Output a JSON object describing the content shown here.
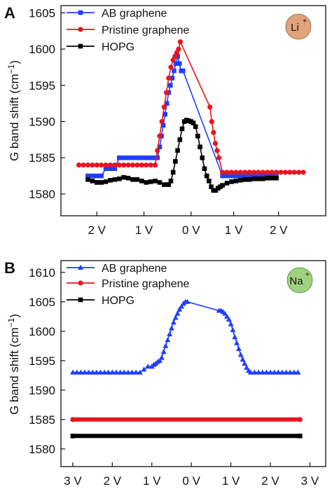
{
  "colors": {
    "ab": "#1f3fff",
    "pristine": "#e8141e",
    "hopg": "#000000",
    "li_badge": "#e2a27c",
    "na_badge": "#9fd27e"
  },
  "chart_data": [
    {
      "panel": "A",
      "type": "line",
      "ylabel": "G band shift (cm",
      "ylabel_sup": "−1",
      "ylabel_close": ")",
      "ylim": [
        1577,
        1606
      ],
      "yticks": [
        1580,
        1585,
        1590,
        1595,
        1600,
        1605
      ],
      "xlim": [
        -2.9,
        3.0
      ],
      "xticks": [
        -2.1,
        -1.05,
        0,
        0.95,
        1.95
      ],
      "xtick_labels": [
        "2 V",
        "1 V",
        "0 V",
        "1 V",
        "2 V"
      ],
      "badge": {
        "symbol": "Li",
        "charge": "+"
      },
      "legend_position": "top-left",
      "series": [
        {
          "name": "AB graphene",
          "marker": "square",
          "x": [
            -2.3,
            -2.2,
            -2.1,
            -2.0,
            -1.9,
            -1.8,
            -1.7,
            -1.6,
            -1.5,
            -1.4,
            -1.3,
            -1.2,
            -1.1,
            -1.0,
            -0.9,
            -0.8,
            -0.75,
            -0.7,
            -0.66,
            -0.62,
            -0.58,
            -0.54,
            -0.5,
            -0.46,
            -0.42,
            -0.38,
            -0.34,
            -0.3,
            -0.26,
            -0.22,
            -0.18,
            0.7,
            0.8,
            0.9,
            1.0,
            1.1,
            1.2,
            1.3,
            1.4,
            1.5,
            1.6,
            1.7,
            1.8,
            1.9
          ],
          "y": [
            1582.5,
            1582.5,
            1582.5,
            1582.5,
            1583.5,
            1583.5,
            1583.5,
            1585.0,
            1585.0,
            1585.0,
            1585.0,
            1585.0,
            1585.0,
            1585.0,
            1585.0,
            1585.0,
            1585.0,
            1586.5,
            1588.0,
            1589.5,
            1591.0,
            1592.5,
            1594.0,
            1595.0,
            1596.0,
            1597.0,
            1598.0,
            1599.0,
            1598.0,
            1597.0,
            1597.0,
            1582.5,
            1582.5,
            1582.5,
            1582.5,
            1582.5,
            1582.5,
            1582.5,
            1582.5,
            1582.5,
            1582.5,
            1582.5,
            1582.5,
            1582.5
          ]
        },
        {
          "name": "Pristine graphene",
          "marker": "circle",
          "x": [
            -2.5,
            -2.4,
            -2.3,
            -2.2,
            -2.1,
            -2.0,
            -1.9,
            -1.8,
            -1.7,
            -1.6,
            -1.5,
            -1.4,
            -1.3,
            -1.2,
            -1.1,
            -1.0,
            -0.9,
            -0.8,
            -0.75,
            -0.7,
            -0.65,
            -0.6,
            -0.55,
            -0.5,
            -0.45,
            -0.4,
            -0.36,
            -0.32,
            -0.28,
            -0.24,
            0.42,
            0.46,
            0.5,
            0.54,
            0.58,
            0.62,
            0.7,
            0.8,
            0.9,
            1.0,
            1.1,
            1.2,
            1.3,
            1.4,
            1.5,
            1.6,
            1.7,
            1.8,
            1.9,
            2.0,
            2.1,
            2.2,
            2.3,
            2.4,
            2.5
          ],
          "y": [
            1584.0,
            1584.0,
            1584.0,
            1584.0,
            1584.0,
            1584.0,
            1584.0,
            1584.0,
            1584.0,
            1584.0,
            1584.0,
            1584.0,
            1584.0,
            1584.0,
            1584.0,
            1584.0,
            1584.0,
            1584.0,
            1586.0,
            1588.0,
            1590.0,
            1592.0,
            1594.0,
            1596.0,
            1597.5,
            1598.5,
            1599.0,
            1599.5,
            1600.0,
            1601.0,
            1592.0,
            1590.0,
            1588.5,
            1587.0,
            1586.0,
            1585.0,
            1583.0,
            1583.0,
            1583.0,
            1583.0,
            1583.0,
            1583.0,
            1583.0,
            1583.0,
            1583.0,
            1583.0,
            1583.0,
            1583.0,
            1583.0,
            1583.0,
            1583.0,
            1583.0,
            1583.0,
            1583.0,
            1583.0
          ]
        },
        {
          "name": "HOPG",
          "marker": "square",
          "x": [
            -2.3,
            -2.2,
            -2.1,
            -2.0,
            -1.9,
            -1.8,
            -1.7,
            -1.6,
            -1.5,
            -1.4,
            -1.3,
            -1.2,
            -1.1,
            -1.0,
            -0.9,
            -0.8,
            -0.7,
            -0.6,
            -0.5,
            -0.45,
            -0.4,
            -0.35,
            -0.3,
            -0.25,
            -0.2,
            -0.15,
            -0.1,
            -0.05,
            0.0,
            0.05,
            0.1,
            0.15,
            0.2,
            0.25,
            0.3,
            0.35,
            0.4,
            0.45,
            0.5,
            0.55,
            0.6,
            0.65,
            0.7,
            0.8,
            0.9,
            1.0,
            1.1,
            1.2,
            1.3,
            1.4,
            1.5,
            1.6,
            1.7,
            1.8,
            1.9
          ],
          "y": [
            1582.0,
            1581.8,
            1581.6,
            1581.6,
            1581.7,
            1581.9,
            1582.0,
            1582.1,
            1582.3,
            1582.2,
            1582.0,
            1582.0,
            1581.8,
            1581.6,
            1581.7,
            1581.8,
            1581.6,
            1581.3,
            1581.3,
            1581.8,
            1583.0,
            1584.5,
            1586.0,
            1587.5,
            1589.0,
            1590.0,
            1590.2,
            1590.1,
            1590.0,
            1589.8,
            1589.3,
            1588.0,
            1586.5,
            1585.0,
            1583.5,
            1582.5,
            1581.8,
            1581.0,
            1580.5,
            1580.5,
            1580.8,
            1581.0,
            1581.2,
            1581.5,
            1581.7,
            1581.8,
            1581.9,
            1582.0,
            1582.0,
            1582.1,
            1582.1,
            1582.1,
            1582.2,
            1582.2,
            1582.2
          ]
        }
      ]
    },
    {
      "panel": "B",
      "type": "line",
      "ylabel": "G band shift (cm",
      "ylabel_sup": "−1",
      "ylabel_close": ")",
      "ylim": [
        1577,
        1612
      ],
      "yticks": [
        1580,
        1585,
        1590,
        1595,
        1600,
        1605,
        1610
      ],
      "xlim": [
        -3.3,
        3.4
      ],
      "xticks": [
        -3.0,
        -2.0,
        -1.0,
        0,
        1.0,
        2.0,
        3.0
      ],
      "xtick_labels": [
        "3 V",
        "2 V",
        "1 V",
        "0 V",
        "1 V",
        "2 V",
        "3 V"
      ],
      "badge": {
        "symbol": "Na",
        "charge": "+"
      },
      "legend_position": "top-left",
      "series": [
        {
          "name": "AB graphene",
          "marker": "triangle",
          "x": [
            -3.0,
            -2.9,
            -2.8,
            -2.7,
            -2.6,
            -2.5,
            -2.4,
            -2.3,
            -2.2,
            -2.1,
            -2.0,
            -1.9,
            -1.8,
            -1.7,
            -1.6,
            -1.5,
            -1.4,
            -1.3,
            -1.2,
            -1.1,
            -1.0,
            -0.95,
            -0.9,
            -0.85,
            -0.8,
            -0.75,
            -0.7,
            -0.65,
            -0.6,
            -0.55,
            -0.5,
            -0.45,
            -0.4,
            -0.35,
            -0.3,
            -0.25,
            -0.2,
            -0.15,
            -0.1,
            0.7,
            0.75,
            0.8,
            0.85,
            0.9,
            0.95,
            1.0,
            1.05,
            1.1,
            1.15,
            1.2,
            1.25,
            1.3,
            1.35,
            1.4,
            1.45,
            1.5,
            1.6,
            1.7,
            1.8,
            1.9,
            2.0,
            2.1,
            2.2,
            2.3,
            2.4,
            2.5,
            2.6,
            2.7
          ],
          "y": [
            1593.0,
            1593.0,
            1593.0,
            1593.0,
            1593.0,
            1593.0,
            1593.0,
            1593.0,
            1593.0,
            1593.0,
            1593.0,
            1593.0,
            1593.0,
            1593.0,
            1593.0,
            1593.0,
            1593.0,
            1593.0,
            1593.5,
            1594.0,
            1594.0,
            1594.3,
            1594.5,
            1594.8,
            1595.0,
            1595.5,
            1596.5,
            1597.5,
            1598.5,
            1599.5,
            1600.5,
            1601.5,
            1602.3,
            1603.0,
            1603.7,
            1604.2,
            1604.7,
            1605.0,
            1605.0,
            1603.5,
            1603.5,
            1603.3,
            1603.0,
            1602.5,
            1602.0,
            1601.2,
            1600.2,
            1599.0,
            1598.0,
            1597.0,
            1596.0,
            1595.2,
            1594.5,
            1593.8,
            1593.3,
            1593.0,
            1593.0,
            1593.0,
            1593.0,
            1593.0,
            1593.0,
            1593.0,
            1593.0,
            1593.0,
            1593.0,
            1593.0,
            1593.0,
            1593.0
          ]
        },
        {
          "name": "Pristine graphene",
          "marker": "circle",
          "x_range": [
            -3.0,
            2.75
          ],
          "value": 1585.0
        },
        {
          "name": "HOPG",
          "marker": "square",
          "x_range": [
            -3.0,
            2.75
          ],
          "value": 1582.2
        }
      ]
    }
  ]
}
